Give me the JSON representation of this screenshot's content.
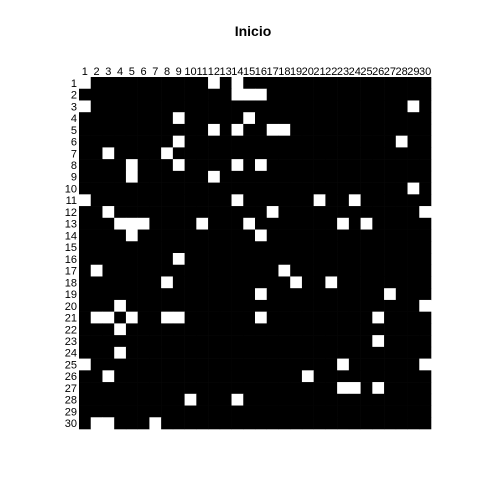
{
  "chart_data": {
    "type": "heatmap",
    "title": "Inicio",
    "rows": 30,
    "cols": 30,
    "x_tick_labels": [
      "1",
      "2",
      "3",
      "4",
      "5",
      "6",
      "7",
      "8",
      "9",
      "10",
      "11",
      "12",
      "13",
      "14",
      "15",
      "16",
      "17",
      "18",
      "19",
      "20",
      "21",
      "22",
      "23",
      "24",
      "25",
      "26",
      "27",
      "28",
      "29",
      "30"
    ],
    "y_tick_labels": [
      "1",
      "2",
      "3",
      "4",
      "5",
      "6",
      "7",
      "8",
      "9",
      "10",
      "11",
      "12",
      "13",
      "14",
      "15",
      "16",
      "17",
      "18",
      "19",
      "20",
      "21",
      "22",
      "23",
      "24",
      "25",
      "26",
      "27",
      "28",
      "29",
      "30"
    ],
    "value_colors": {
      "0": "#000000",
      "1": "#ffffff"
    },
    "grid": false,
    "legend": "none",
    "active_cells": [
      [
        1,
        1
      ],
      [
        1,
        12
      ],
      [
        1,
        14
      ],
      [
        2,
        14
      ],
      [
        2,
        15
      ],
      [
        2,
        16
      ],
      [
        3,
        1
      ],
      [
        3,
        29
      ],
      [
        4,
        9
      ],
      [
        4,
        15
      ],
      [
        5,
        12
      ],
      [
        5,
        14
      ],
      [
        5,
        17
      ],
      [
        5,
        18
      ],
      [
        6,
        9
      ],
      [
        6,
        28
      ],
      [
        7,
        3
      ],
      [
        7,
        8
      ],
      [
        8,
        5
      ],
      [
        8,
        9
      ],
      [
        8,
        14
      ],
      [
        8,
        16
      ],
      [
        9,
        5
      ],
      [
        9,
        12
      ],
      [
        10,
        29
      ],
      [
        11,
        1
      ],
      [
        11,
        14
      ],
      [
        11,
        21
      ],
      [
        11,
        24
      ],
      [
        12,
        3
      ],
      [
        12,
        17
      ],
      [
        12,
        30
      ],
      [
        13,
        4
      ],
      [
        13,
        5
      ],
      [
        13,
        6
      ],
      [
        13,
        11
      ],
      [
        13,
        15
      ],
      [
        13,
        23
      ],
      [
        13,
        25
      ],
      [
        14,
        5
      ],
      [
        14,
        16
      ],
      [
        16,
        9
      ],
      [
        17,
        2
      ],
      [
        17,
        18
      ],
      [
        18,
        8
      ],
      [
        18,
        19
      ],
      [
        18,
        22
      ],
      [
        19,
        16
      ],
      [
        19,
        27
      ],
      [
        20,
        4
      ],
      [
        20,
        30
      ],
      [
        21,
        2
      ],
      [
        21,
        3
      ],
      [
        21,
        5
      ],
      [
        21,
        8
      ],
      [
        21,
        9
      ],
      [
        21,
        16
      ],
      [
        21,
        26
      ],
      [
        22,
        4
      ],
      [
        23,
        26
      ],
      [
        24,
        4
      ],
      [
        25,
        1
      ],
      [
        25,
        23
      ],
      [
        25,
        30
      ],
      [
        26,
        3
      ],
      [
        26,
        20
      ],
      [
        27,
        23
      ],
      [
        27,
        24
      ],
      [
        27,
        26
      ],
      [
        28,
        10
      ],
      [
        28,
        14
      ],
      [
        30,
        2
      ],
      [
        30,
        3
      ],
      [
        30,
        7
      ]
    ]
  }
}
